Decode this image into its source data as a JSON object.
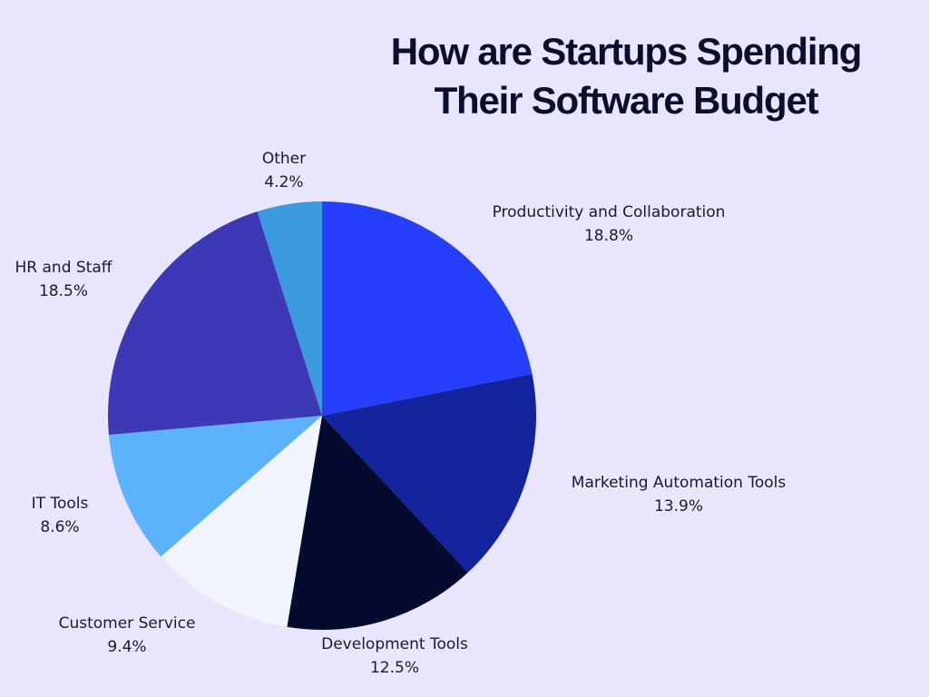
{
  "title_line1": "How are Startups Spending",
  "title_line2": "Their Software Budget",
  "chart_data": {
    "type": "pie",
    "title": "How are Startups Spending Their Software Budget",
    "slices": [
      {
        "label": "Productivity and Collaboration",
        "value": 18.8,
        "value_label": "18.8%",
        "color": "#253ffd"
      },
      {
        "label": "Marketing Automation Tools",
        "value": 13.9,
        "value_label": "13.9%",
        "color": "#13239c"
      },
      {
        "label": "Development Tools",
        "value": 12.5,
        "value_label": "12.5%",
        "color": "#050b2e"
      },
      {
        "label": "Customer Service",
        "value": 9.4,
        "value_label": "9.4%",
        "color": "#f2f4fd"
      },
      {
        "label": "IT Tools",
        "value": 8.6,
        "value_label": "8.6%",
        "color": "#5cb2fb"
      },
      {
        "label": "HR and Staff",
        "value": 18.5,
        "value_label": "18.5%",
        "color": "#3d39b6"
      },
      {
        "label": "Other",
        "value": 4.2,
        "value_label": "4.2%",
        "color": "#3a9add"
      }
    ]
  }
}
